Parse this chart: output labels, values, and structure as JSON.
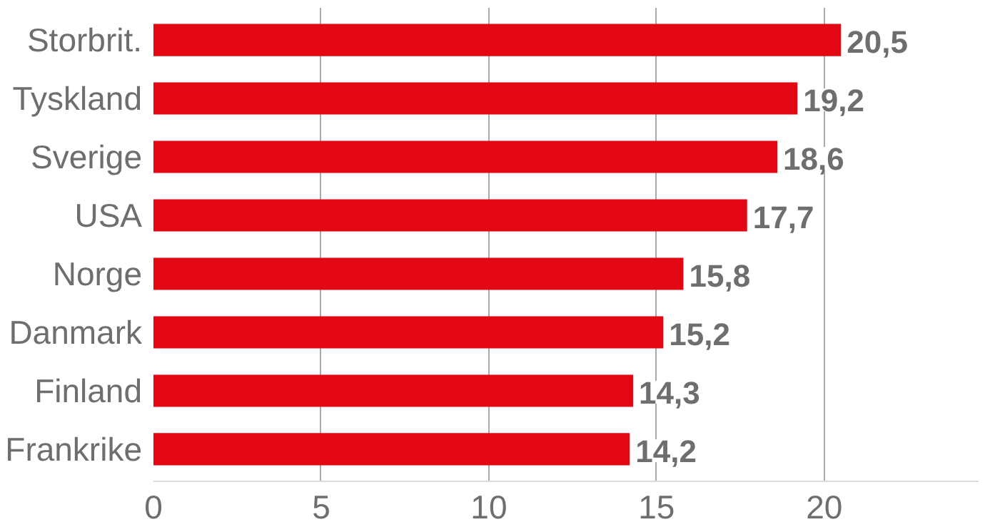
{
  "chart_data": {
    "type": "bar",
    "orientation": "horizontal",
    "categories": [
      "Storbrit.",
      "Tyskland",
      "Sverige",
      "USA",
      "Norge",
      "Danmark",
      "Finland",
      "Frankrike"
    ],
    "values": [
      20.5,
      19.2,
      18.6,
      17.7,
      15.8,
      15.2,
      14.3,
      14.2
    ],
    "color": "#e30613",
    "xlim": [
      0,
      24.6
    ],
    "xticks": [
      0,
      5,
      10,
      15,
      20
    ],
    "grid": "x",
    "value_labels": [
      "20,5",
      "19,2",
      "18,6",
      "17,7",
      "15,8",
      "15,2",
      "14,3",
      "14,2"
    ]
  }
}
